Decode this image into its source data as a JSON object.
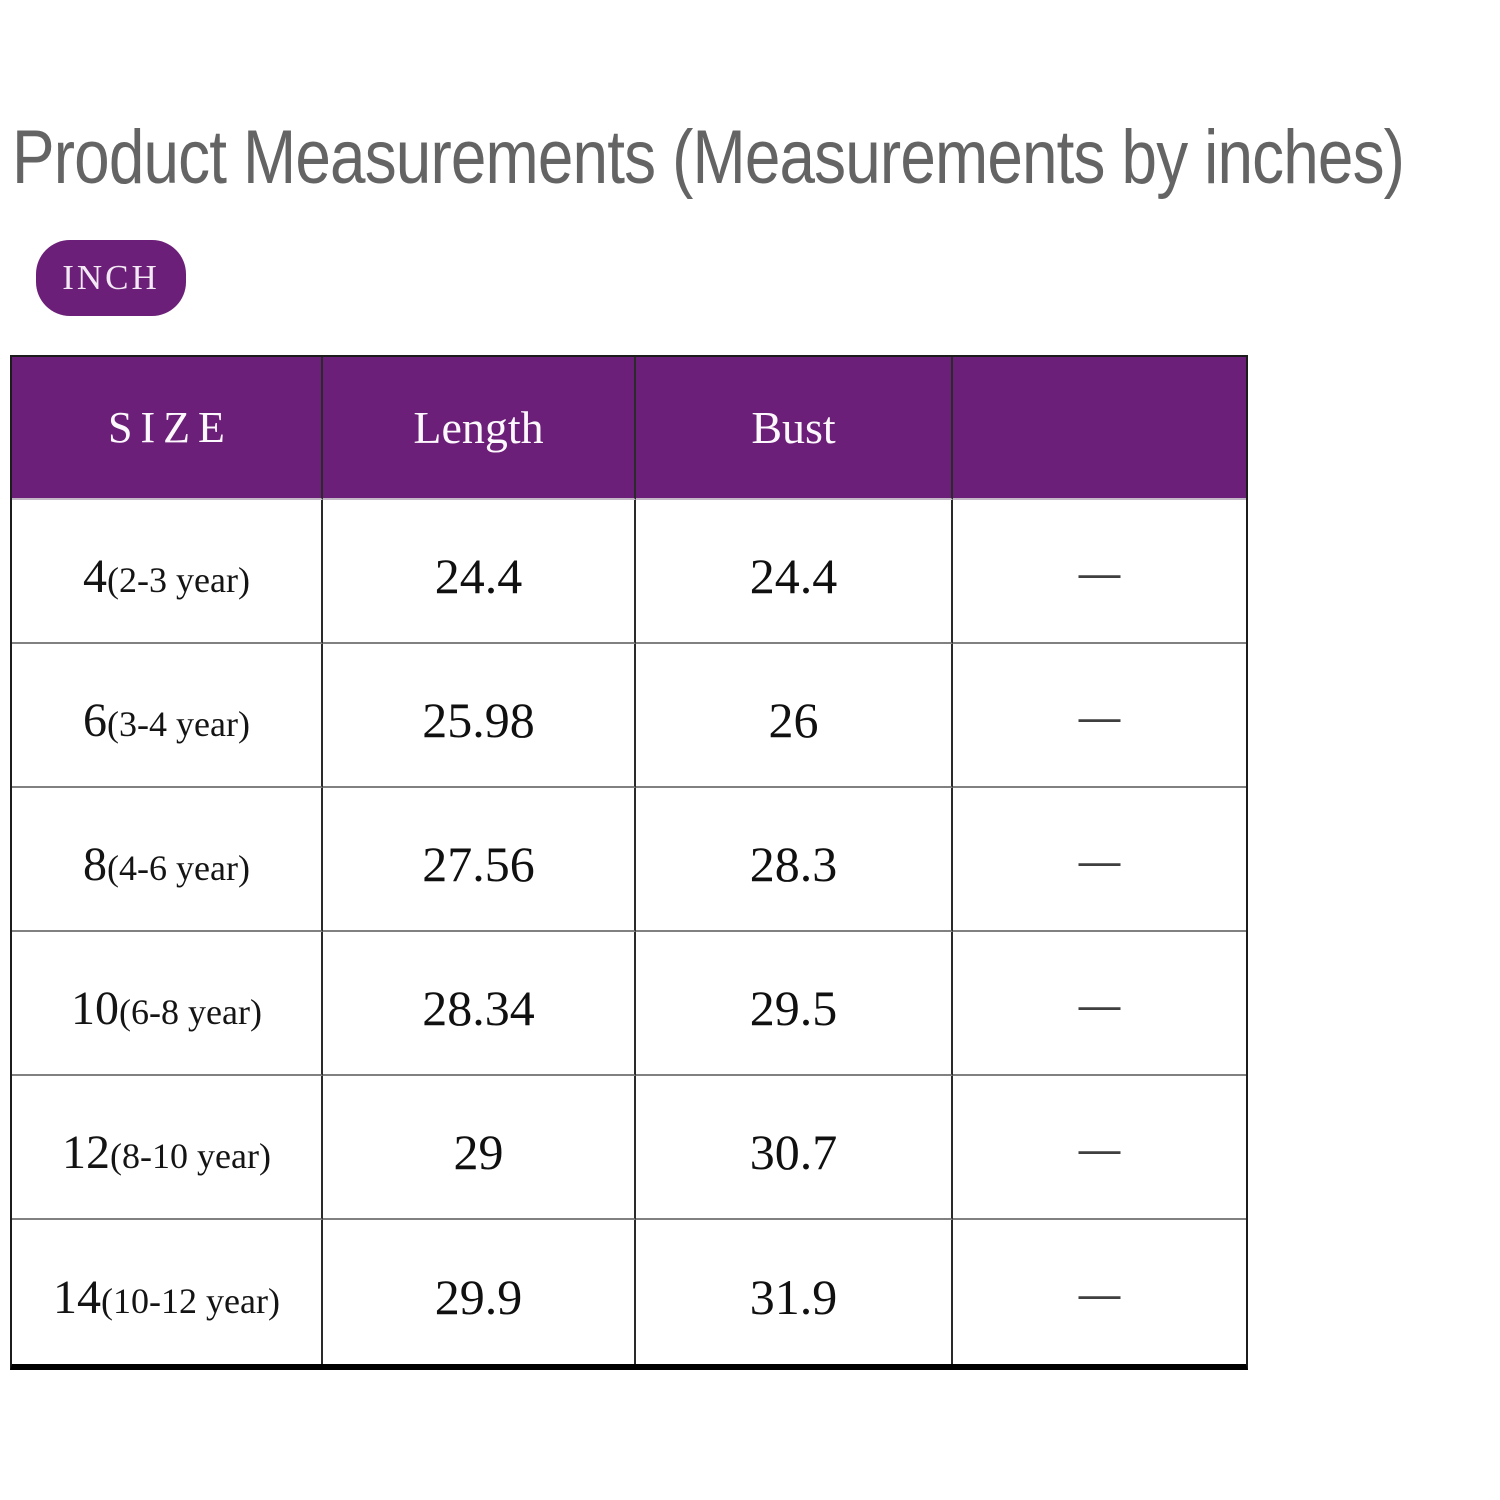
{
  "title": "Product Measurements (Measurements by inches)",
  "unit_badge": {
    "label": "INCH"
  },
  "colors": {
    "accent_purple": "#6C1F78",
    "title_gray": "#646464",
    "table_border": "#1c1c1c",
    "row_separator": "#818181"
  },
  "table": {
    "headers": [
      "SIZE",
      "Length",
      "Bust",
      ""
    ],
    "rows": [
      {
        "size": "4",
        "age": "(2-3 year)",
        "length": "24.4",
        "bust": "24.4",
        "extra": "—"
      },
      {
        "size": "6",
        "age": "(3-4 year)",
        "length": "25.98",
        "bust": "26",
        "extra": "—"
      },
      {
        "size": "8",
        "age": "(4-6 year)",
        "length": "27.56",
        "bust": "28.3",
        "extra": "—"
      },
      {
        "size": "10",
        "age": "(6-8 year)",
        "length": "28.34",
        "bust": "29.5",
        "extra": "—"
      },
      {
        "size": "12",
        "age": "(8-10 year)",
        "length": "29",
        "bust": "30.7",
        "extra": "—"
      },
      {
        "size": "14",
        "age": "(10-12 year)",
        "length": "29.9",
        "bust": "31.9",
        "extra": "—"
      }
    ]
  },
  "chart_data": {
    "type": "table",
    "title": "Product Measurements (Measurements by inches)",
    "unit": "INCH",
    "columns": [
      "SIZE",
      "Length",
      "Bust",
      ""
    ],
    "rows": [
      [
        "4(2-3 year)",
        24.4,
        24.4,
        "—"
      ],
      [
        "6(3-4 year)",
        25.98,
        26,
        "—"
      ],
      [
        "8(4-6 year)",
        27.56,
        28.3,
        "—"
      ],
      [
        "10(6-8 year)",
        28.34,
        29.5,
        "—"
      ],
      [
        "12(8-10 year)",
        29,
        30.7,
        "—"
      ],
      [
        "14(10-12 year)",
        29.9,
        31.9,
        "—"
      ]
    ],
    "layout": {
      "header_background": "#6C1F78",
      "header_text_color": "#ffffff",
      "grid": true
    }
  }
}
